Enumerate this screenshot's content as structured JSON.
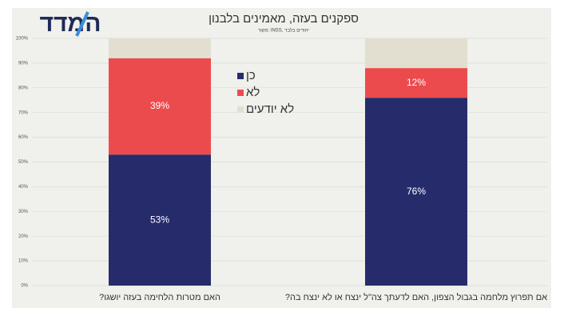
{
  "logo": "המדד",
  "chart_data": {
    "type": "stacked_bar",
    "title": "ספקנים בעזה, מאמינים בלבנון",
    "subtitle": "מקור: INSS, יהודים בלבד",
    "categories": [
      "האם מטרות הלחימה בעזה יושגו?",
      "אם תפרוץ מלחמה בגבול הצפון, האם לדעתך צה\"ל ינצח או לא ינצח בה?"
    ],
    "series": [
      {
        "name": "כן",
        "color": "#262c6b",
        "values": [
          53,
          76
        ],
        "value_labels": [
          "53%",
          "76%"
        ]
      },
      {
        "name": "לא",
        "color": "#ec4b4e",
        "values": [
          39,
          12
        ],
        "value_labels": [
          "39%",
          "12%"
        ]
      },
      {
        "name": "לא יודעים",
        "color": "#e2dfd0",
        "values": [
          8,
          12
        ]
      }
    ],
    "ylim": [
      0,
      100
    ],
    "yticks": [
      {
        "value": 0,
        "label": "0%"
      },
      {
        "value": 10,
        "label": "10%"
      },
      {
        "value": 20,
        "label": "20%"
      },
      {
        "value": 30,
        "label": "30%"
      },
      {
        "value": 40,
        "label": "40%"
      },
      {
        "value": 50,
        "label": "50%"
      },
      {
        "value": 60,
        "label": "60%"
      },
      {
        "value": 70,
        "label": "70%"
      },
      {
        "value": 80,
        "label": "80%"
      },
      {
        "value": 90,
        "label": "90%"
      },
      {
        "value": 100,
        "label": "100%"
      }
    ],
    "grid": true
  }
}
